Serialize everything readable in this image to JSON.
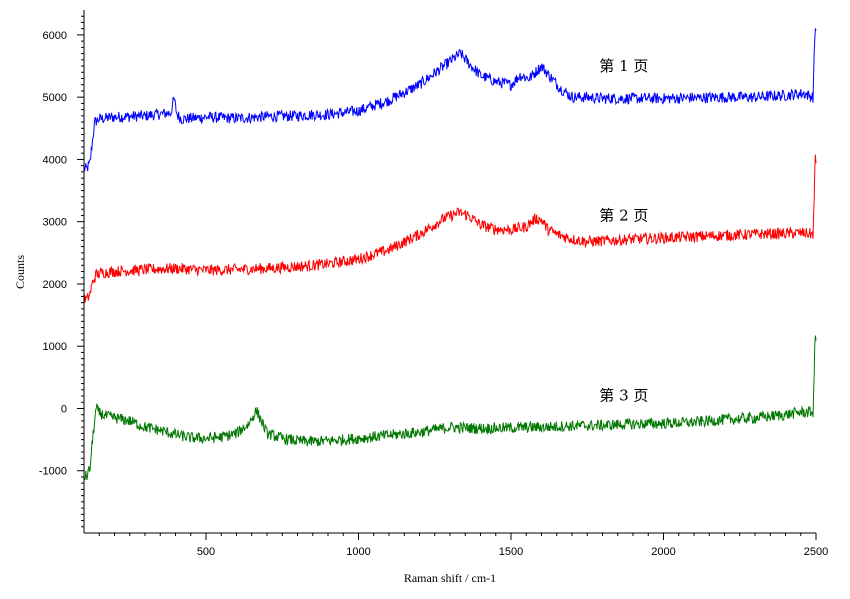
{
  "chart_data": {
    "type": "line",
    "title": "",
    "xlabel": "Raman shift / cm-1",
    "ylabel": "Counts",
    "xlim": [
      100,
      2500
    ],
    "ylim": [
      -2000,
      6400
    ],
    "x_ticks": [
      500,
      1000,
      1500,
      2000,
      2500
    ],
    "y_ticks": [
      -1000,
      0,
      1000,
      2000,
      3000,
      4000,
      5000,
      6000
    ],
    "grid": false,
    "legend": "none",
    "series": [
      {
        "name": "第 1 页",
        "color": "#0000ff",
        "label_at": [
          1870,
          5420
        ],
        "x": [
          100,
          110,
          120,
          130,
          135,
          150,
          200,
          300,
          385,
          395,
          405,
          420,
          450,
          500,
          600,
          700,
          800,
          850,
          900,
          1000,
          1100,
          1200,
          1280,
          1320,
          1335,
          1360,
          1400,
          1450,
          1500,
          1530,
          1560,
          1600,
          1625,
          1660,
          1700,
          1750,
          1800,
          1900,
          2000,
          2100,
          2200,
          2300,
          2400,
          2460,
          2490,
          2495,
          2497,
          2500
        ],
        "y": [
          3850,
          3850,
          3950,
          4400,
          4600,
          4650,
          4680,
          4700,
          4750,
          4980,
          4720,
          4650,
          4660,
          4680,
          4660,
          4690,
          4700,
          4720,
          4720,
          4780,
          4950,
          5200,
          5500,
          5650,
          5700,
          5550,
          5350,
          5250,
          5200,
          5350,
          5300,
          5500,
          5350,
          5150,
          5000,
          5000,
          4980,
          4980,
          4980,
          4990,
          5000,
          5000,
          5030,
          5060,
          5000,
          5800,
          6150,
          6050
        ]
      },
      {
        "name": "第 2 页",
        "color": "#ff0000",
        "label_at": [
          1870,
          3020
        ],
        "x": [
          100,
          110,
          120,
          130,
          140,
          160,
          200,
          300,
          400,
          500,
          600,
          700,
          800,
          900,
          1000,
          1100,
          1200,
          1280,
          1330,
          1360,
          1400,
          1450,
          1500,
          1550,
          1580,
          1600,
          1620,
          1650,
          1700,
          1750,
          1800,
          1900,
          2000,
          2100,
          2200,
          2300,
          2400,
          2450,
          2490,
          2495,
          2497,
          2500
        ],
        "y": [
          1750,
          1750,
          1850,
          2050,
          2150,
          2180,
          2200,
          2230,
          2250,
          2220,
          2230,
          2250,
          2280,
          2320,
          2400,
          2550,
          2800,
          3050,
          3150,
          3100,
          2950,
          2880,
          2870,
          2920,
          3050,
          3030,
          2880,
          2800,
          2720,
          2680,
          2690,
          2720,
          2740,
          2760,
          2780,
          2800,
          2810,
          2820,
          2800,
          3500,
          4050,
          3950
        ]
      },
      {
        "name": "第 3 页",
        "color": "#007700",
        "label_at": [
          1870,
          130
        ],
        "x": [
          100,
          110,
          120,
          130,
          140,
          150,
          170,
          200,
          250,
          300,
          350,
          400,
          450,
          500,
          550,
          600,
          640,
          665,
          680,
          700,
          750,
          800,
          850,
          900,
          1000,
          1100,
          1200,
          1300,
          1400,
          1500,
          1600,
          1700,
          1800,
          1900,
          2000,
          2100,
          2200,
          2300,
          2400,
          2450,
          2490,
          2495,
          2497,
          2500
        ],
        "y": [
          -1100,
          -1080,
          -950,
          -400,
          0,
          -70,
          -120,
          -150,
          -200,
          -300,
          -350,
          -420,
          -470,
          -480,
          -460,
          -400,
          -250,
          -30,
          -180,
          -400,
          -480,
          -520,
          -530,
          -520,
          -480,
          -430,
          -380,
          -300,
          -320,
          -310,
          -300,
          -280,
          -270,
          -250,
          -240,
          -220,
          -180,
          -150,
          -100,
          -60,
          -60,
          700,
          1200,
          1100
        ]
      }
    ]
  }
}
